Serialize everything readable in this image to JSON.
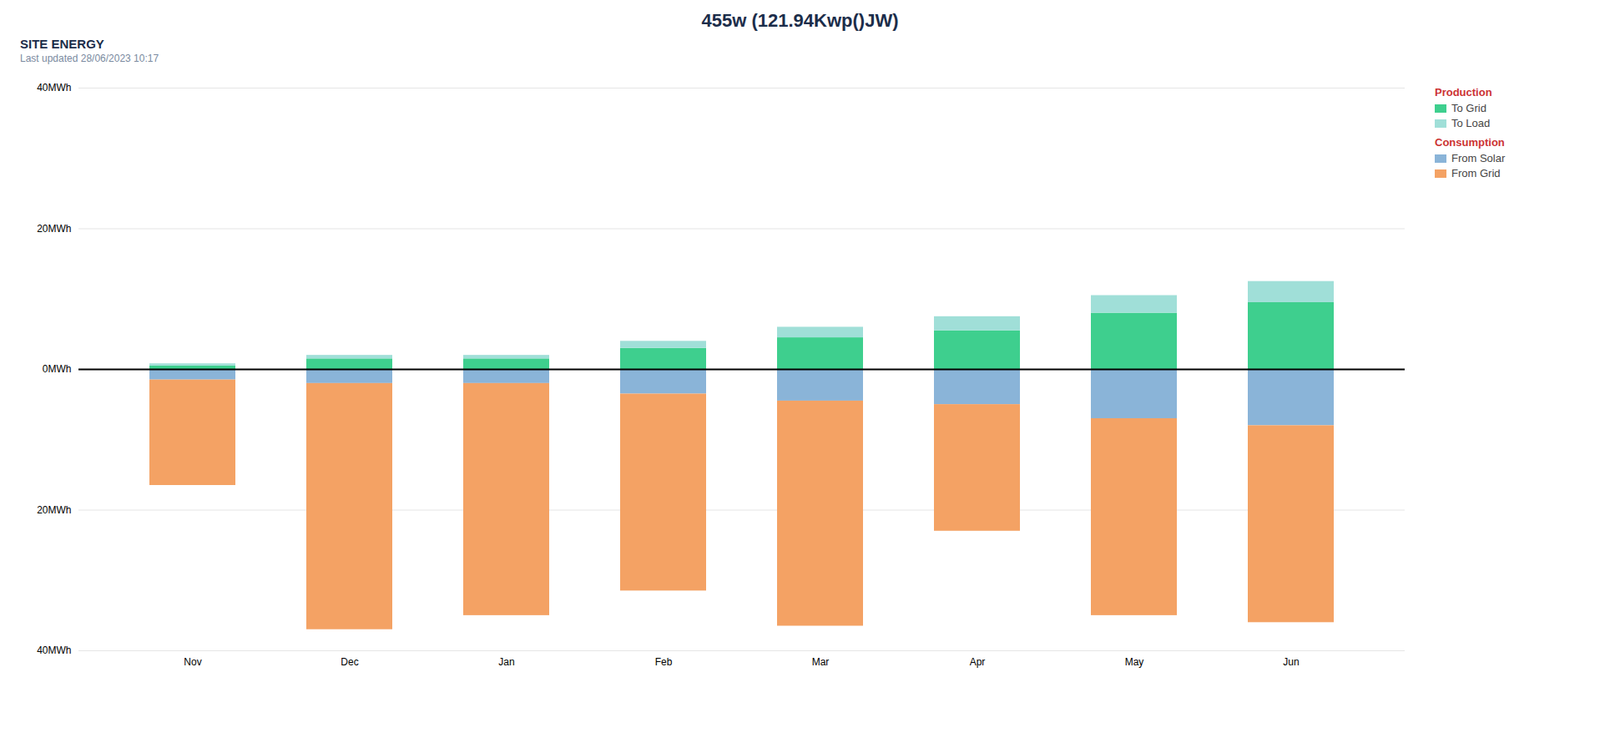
{
  "chart_data": {
    "type": "bar",
    "title": "455w (121.94Kwp()JW)",
    "subtitle": "Last updated 28/06/2023 10:17",
    "annotations": [
      "SITE ENERGY",
      "Production",
      "Consumption"
    ],
    "stacked": true,
    "categories": [
      "Nov",
      "Dec",
      "Jan",
      "Feb",
      "Mar",
      "Apr",
      "May",
      "Jun"
    ],
    "series": [
      {
        "name": "To Grid",
        "color": "#3ecf8e",
        "values": [
          0.5,
          1.5,
          1.5,
          3.0,
          4.5,
          5.5,
          8.0,
          9.5
        ]
      },
      {
        "name": "To Load",
        "color": "#a0dfd8",
        "values": [
          0.3,
          0.5,
          0.5,
          1.0,
          1.5,
          2.0,
          2.5,
          3.0
        ]
      },
      {
        "name": "From Solar",
        "color": "#8ab4d8",
        "values": [
          -1.5,
          -2.0,
          -2.0,
          -3.5,
          -4.5,
          -5.0,
          -7.0,
          -8.0
        ]
      },
      {
        "name": "From Grid",
        "color": "#f4a264",
        "values": [
          -15.0,
          -35.0,
          -33.0,
          -28.0,
          -32.0,
          -18.0,
          -28.0,
          -28.0
        ]
      }
    ],
    "ylim": [
      -40,
      40
    ],
    "yticks": [
      {
        "value": -40,
        "label": "40MWh"
      },
      {
        "value": -20,
        "label": "20MWh"
      },
      {
        "value": 0,
        "label": "0MWh"
      },
      {
        "value": 20,
        "label": "20MWh"
      },
      {
        "value": 40,
        "label": "40MWh"
      }
    ],
    "grid": true,
    "legend": "upper right"
  }
}
